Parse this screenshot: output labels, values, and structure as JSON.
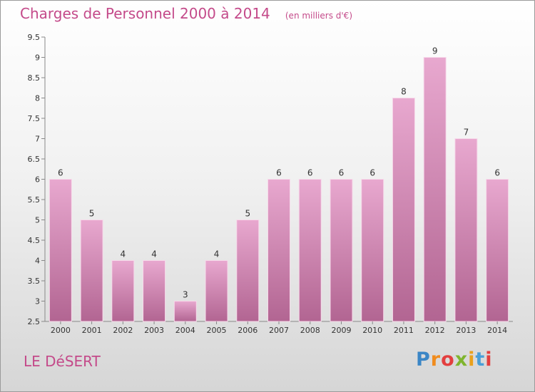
{
  "header": {
    "title": "Charges de Personnel 2000 à 2014",
    "unit": "(en milliers d'€)"
  },
  "footer": {
    "place": "LE DéSERT",
    "logo_letters": [
      "P",
      "r",
      "o",
      "x",
      "i",
      "t",
      "i"
    ],
    "logo_colors": [
      "#3b86c6",
      "#f08c1e",
      "#e33f3f",
      "#7fb52e",
      "#e9a11d",
      "#4a9fd8",
      "#e33f3f"
    ]
  },
  "colors": {
    "bar_light": "#e8a8cf",
    "bar_dark": "#b26592",
    "text_accent": "#c44a8a"
  },
  "chart_data": {
    "type": "bar",
    "categories": [
      "2000",
      "2001",
      "2002",
      "2003",
      "2004",
      "2005",
      "2006",
      "2007",
      "2008",
      "2009",
      "2010",
      "2011",
      "2012",
      "2013",
      "2014"
    ],
    "values": [
      6,
      5,
      4,
      4,
      3,
      4,
      5,
      6,
      6,
      6,
      6,
      8,
      9,
      7,
      6
    ],
    "value_labels": [
      "6",
      "5",
      "4",
      "4",
      "3",
      "4",
      "5",
      "6",
      "6",
      "6",
      "6",
      "8",
      "9",
      "7",
      "6"
    ],
    "title": "Charges de Personnel 2000 à 2014",
    "ylabel": "",
    "xlabel": "",
    "ylim": [
      2.5,
      9.5
    ],
    "yticks": [
      2.5,
      3,
      3.5,
      4,
      4.5,
      5,
      5.5,
      6,
      6.5,
      7,
      7.5,
      8,
      8.5,
      9,
      9.5
    ],
    "ytick_labels": [
      "2.5",
      "3",
      "3.5",
      "4",
      "4.5",
      "5",
      "5.5",
      "6",
      "6.5",
      "7",
      "7.5",
      "8",
      "8.5",
      "9",
      "9.5"
    ],
    "grid": false,
    "legend": "none"
  }
}
